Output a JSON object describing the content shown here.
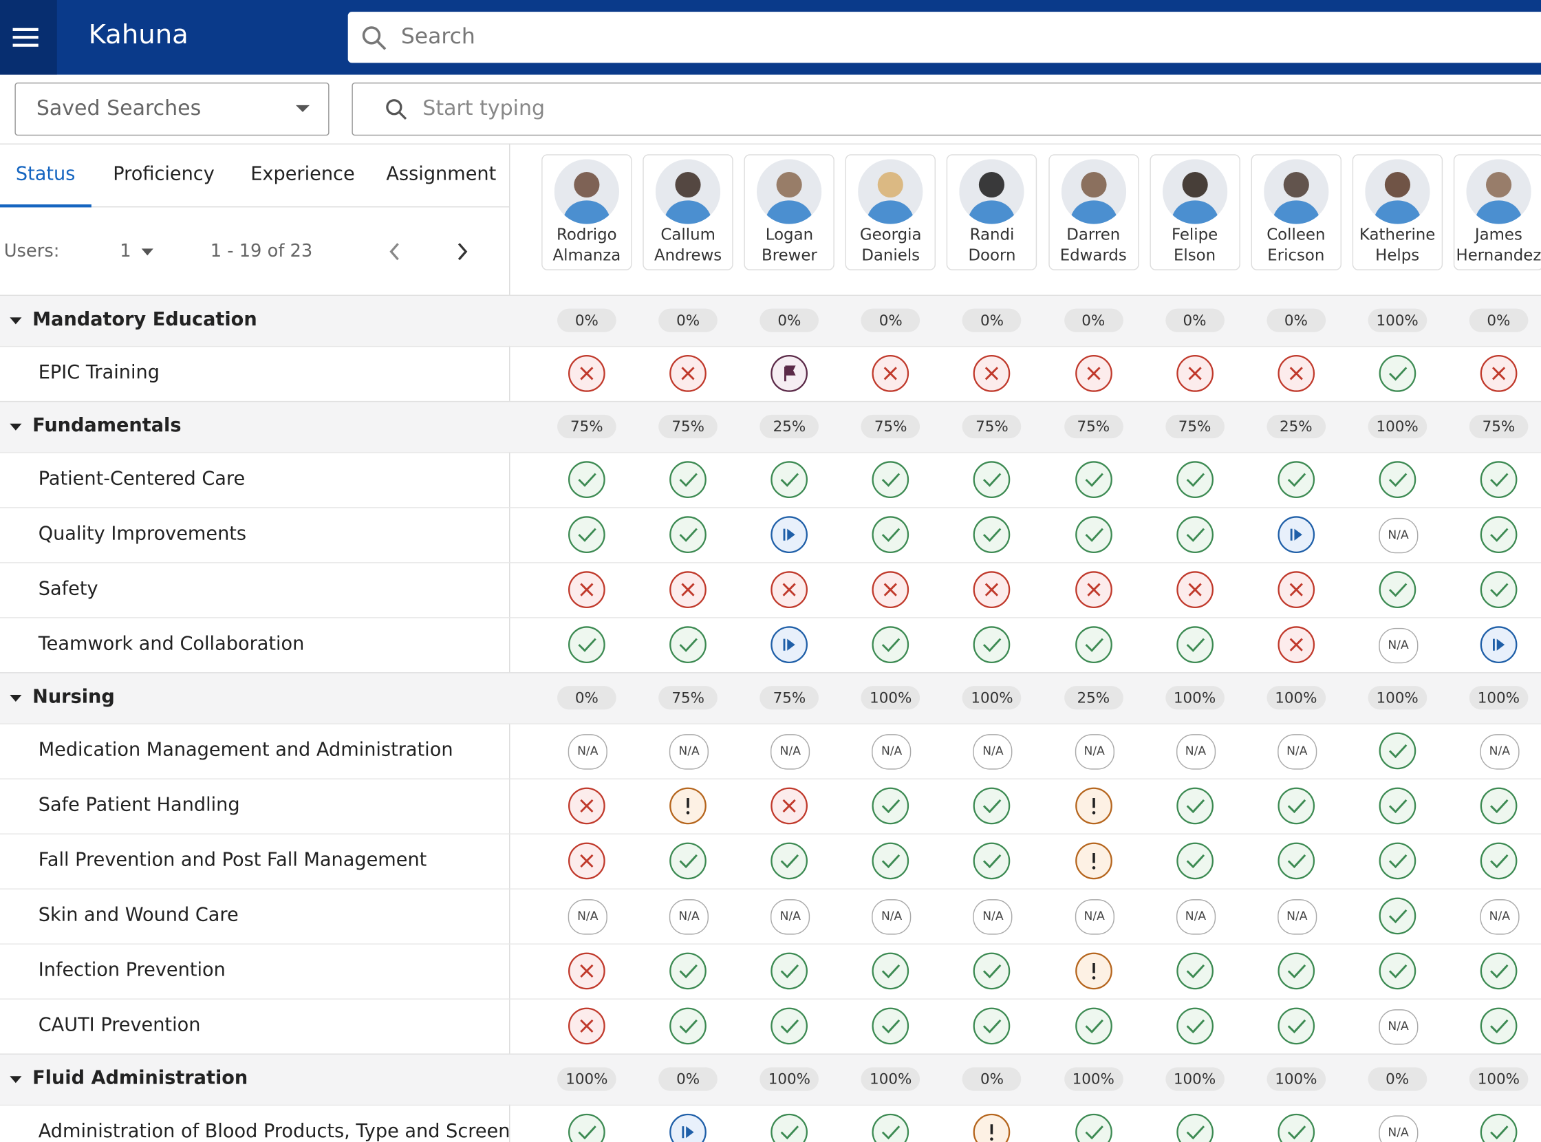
{
  "header": {
    "brand": "Kahuna",
    "search_placeholder": "Search"
  },
  "filters": {
    "saved_searches": "Saved Searches",
    "start_typing": "Start typing"
  },
  "tabs": [
    "Status",
    "Proficiency",
    "Experience",
    "Assignment"
  ],
  "pager": {
    "users_label": "Users:",
    "per_page": "1",
    "range": "1 - 19 of 23"
  },
  "users": [
    {
      "first": "Rodrigo",
      "last": "Almanza"
    },
    {
      "first": "Callum",
      "last": "Andrews"
    },
    {
      "first": "Logan",
      "last": "Brewer"
    },
    {
      "first": "Georgia",
      "last": "Daniels"
    },
    {
      "first": "Randi",
      "last": "Doorn"
    },
    {
      "first": "Darren",
      "last": "Edwards"
    },
    {
      "first": "Felipe",
      "last": "Elson"
    },
    {
      "first": "Colleen",
      "last": "Ericson"
    },
    {
      "first": "Katherine",
      "last": "Helps"
    },
    {
      "first": "James",
      "last": "Hernandez"
    }
  ],
  "groups": [
    {
      "name": "Mandatory Education",
      "percents": [
        "0%",
        "0%",
        "0%",
        "0%",
        "0%",
        "0%",
        "0%",
        "0%",
        "100%",
        "0%"
      ],
      "items": [
        {
          "name": "EPIC Training",
          "statuses": [
            "x",
            "x",
            "flag",
            "x",
            "x",
            "x",
            "x",
            "x",
            "check",
            "x"
          ]
        }
      ]
    },
    {
      "name": "Fundamentals",
      "percents": [
        "75%",
        "75%",
        "25%",
        "75%",
        "75%",
        "75%",
        "75%",
        "25%",
        "100%",
        "75%"
      ],
      "items": [
        {
          "name": "Patient-Centered Care",
          "statuses": [
            "check",
            "check",
            "check",
            "check",
            "check",
            "check",
            "check",
            "check",
            "check",
            "check"
          ]
        },
        {
          "name": "Quality Improvements",
          "statuses": [
            "check",
            "check",
            "play",
            "check",
            "check",
            "check",
            "check",
            "play",
            "N/A",
            "check"
          ]
        },
        {
          "name": "Safety",
          "statuses": [
            "x",
            "x",
            "x",
            "x",
            "x",
            "x",
            "x",
            "x",
            "check",
            "check"
          ]
        },
        {
          "name": "Teamwork and Collaboration",
          "statuses": [
            "check",
            "check",
            "play",
            "check",
            "check",
            "check",
            "check",
            "x",
            "N/A",
            "play"
          ]
        }
      ]
    },
    {
      "name": "Nursing",
      "percents": [
        "0%",
        "75%",
        "75%",
        "100%",
        "100%",
        "25%",
        "100%",
        "100%",
        "100%",
        "100%"
      ],
      "items": [
        {
          "name": "Medication Management and Administration",
          "statuses": [
            "N/A",
            "N/A",
            "N/A",
            "N/A",
            "N/A",
            "N/A",
            "N/A",
            "N/A",
            "check",
            "N/A"
          ]
        },
        {
          "name": "Safe Patient Handling",
          "statuses": [
            "x",
            "warn",
            "x",
            "check",
            "check",
            "warn",
            "check",
            "check",
            "check",
            "check"
          ]
        },
        {
          "name": "Fall Prevention and Post Fall Management",
          "statuses": [
            "x",
            "check",
            "check",
            "check",
            "check",
            "warn",
            "check",
            "check",
            "check",
            "check"
          ]
        },
        {
          "name": "Skin and Wound Care",
          "statuses": [
            "N/A",
            "N/A",
            "N/A",
            "N/A",
            "N/A",
            "N/A",
            "N/A",
            "N/A",
            "check",
            "N/A"
          ]
        },
        {
          "name": "Infection Prevention",
          "statuses": [
            "x",
            "check",
            "check",
            "check",
            "check",
            "warn",
            "check",
            "check",
            "check",
            "check"
          ]
        },
        {
          "name": "CAUTI Prevention",
          "statuses": [
            "x",
            "check",
            "check",
            "check",
            "check",
            "check",
            "check",
            "check",
            "N/A",
            "check"
          ]
        }
      ]
    },
    {
      "name": "Fluid Administration",
      "percents": [
        "100%",
        "0%",
        "100%",
        "100%",
        "0%",
        "100%",
        "100%",
        "100%",
        "0%",
        "100%"
      ],
      "items": [
        {
          "name": "Administration of Blood Products, Type and Screen",
          "statuses": [
            "check",
            "play",
            "check",
            "check",
            "warn",
            "check",
            "check",
            "check",
            "N/A",
            "check"
          ]
        }
      ]
    }
  ]
}
